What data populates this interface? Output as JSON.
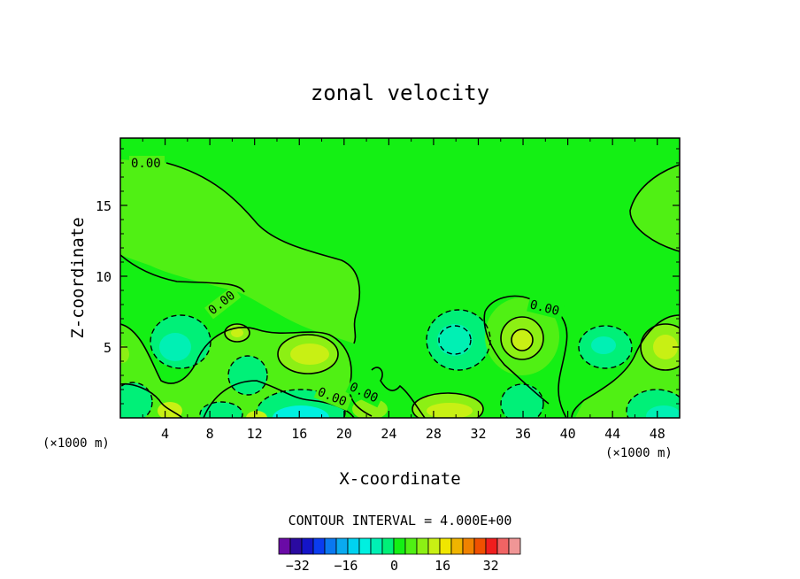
{
  "chart_data": {
    "type": "heatmap",
    "subtype": "filled-contour",
    "title": "zonal velocity",
    "xlabel": "X-coordinate",
    "ylabel": "Z-coordinate",
    "x_unit": "(×1000 m)",
    "y_unit": "(×1000 m)",
    "xlim": [
      0,
      50
    ],
    "ylim": [
      0,
      19.75
    ],
    "x_ticks": [
      4,
      8,
      12,
      16,
      20,
      24,
      28,
      32,
      36,
      40,
      44,
      48
    ],
    "y_ticks": [
      5,
      10,
      15
    ],
    "contour_interval_text": "CONTOUR INTERVAL = 4.000E+00",
    "contour_labels": [
      "0.00",
      "0.00",
      "0.00",
      "0.00",
      "0.00"
    ],
    "colorbar": {
      "tick_labels": [
        "−32",
        "−16",
        "0",
        "16",
        "32"
      ],
      "tick_values": [
        -32,
        -16,
        0,
        16,
        32
      ],
      "levels": [
        -40,
        -36,
        -32,
        -28,
        -24,
        -20,
        -16,
        -12,
        -8,
        -4,
        0,
        4,
        8,
        12,
        16,
        20,
        24,
        28,
        32,
        36,
        40
      ],
      "colors": [
        "#6a0aa6",
        "#2a0aa0",
        "#1414c8",
        "#0a3cf0",
        "#0a78f0",
        "#0aaaf0",
        "#00d2f0",
        "#00f0e0",
        "#00f0b4",
        "#00f078",
        "#14f014",
        "#50f014",
        "#8cf014",
        "#c8f014",
        "#f0e600",
        "#f0b400",
        "#f08200",
        "#f05000",
        "#f01e1e",
        "#f06464",
        "#f09696"
      ]
    },
    "grid": false,
    "legend": "colorbar-bottom"
  }
}
